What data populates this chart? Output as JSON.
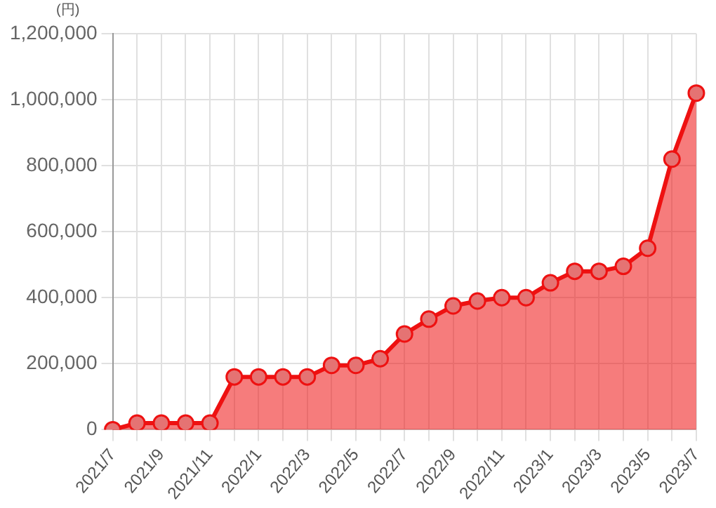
{
  "chart_data": {
    "type": "area",
    "ylabel": "(円)",
    "categories": [
      "2021/7",
      null,
      "2021/9",
      null,
      "2021/11",
      null,
      "2022/1",
      null,
      "2022/3",
      null,
      "2022/5",
      null,
      "2022/7",
      null,
      "2022/9",
      null,
      "2022/11",
      null,
      "2023/1",
      null,
      "2023/3",
      null,
      "2023/5",
      null,
      "2023/7"
    ],
    "series": [
      {
        "color": "#ee1111",
        "values": [
          0,
          20000,
          20000,
          20000,
          20000,
          160000,
          160000,
          160000,
          160000,
          195000,
          195000,
          215000,
          290000,
          335000,
          375000,
          390000,
          400000,
          400000,
          445000,
          480000,
          480000,
          495000,
          550000,
          820000,
          1020000
        ]
      }
    ],
    "ylim": [
      0,
      1200000
    ],
    "yticks": [
      {
        "value": 0,
        "label": "0"
      },
      {
        "value": 200000,
        "label": "200,000"
      },
      {
        "value": 400000,
        "label": "400,000"
      },
      {
        "value": 600000,
        "label": "600,000"
      },
      {
        "value": 800000,
        "label": "800,000"
      },
      {
        "value": 1000000,
        "label": "1,000,000"
      },
      {
        "value": 1200000,
        "label": "1,200,000"
      }
    ],
    "grid": true,
    "legend": false,
    "marker": "circle",
    "line_style": "solid"
  }
}
